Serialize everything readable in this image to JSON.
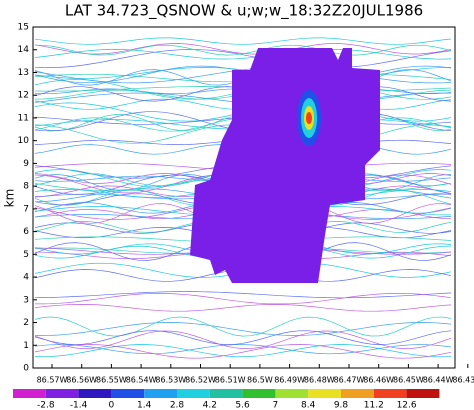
{
  "chart_data": {
    "type": "contour",
    "title": "LAT 34.723_QSNOW & u;w;w_18:32Z20JUL1986",
    "ylabel": "km",
    "ylim": [
      0,
      15
    ],
    "yticks": [
      0,
      1,
      2,
      3,
      4,
      5,
      6,
      7,
      8,
      9,
      10,
      11,
      12,
      13,
      14,
      15
    ],
    "x_tick_labels": [
      "86.57W",
      "86.56W",
      "86.55W",
      "86.54W",
      "86.53W",
      "86.52W",
      "86.51W",
      "86.5W",
      "86.49W",
      "86.48W",
      "86.47W",
      "86.46W",
      "86.45W",
      "86.44W",
      "86.43W"
    ],
    "colorbar": {
      "levels": [
        -2.8,
        -1.4,
        0,
        1.4,
        2.8,
        4.2,
        5.6,
        7,
        8.4,
        9.8,
        11.2,
        12.6
      ],
      "colors": [
        "#d020d0",
        "#8020e0",
        "#3018c0",
        "#2050e8",
        "#20a0f0",
        "#20d0e0",
        "#20c0a0",
        "#30c030",
        "#a0e030",
        "#e8e020",
        "#f0a020",
        "#f04020",
        "#c01010"
      ]
    }
  }
}
